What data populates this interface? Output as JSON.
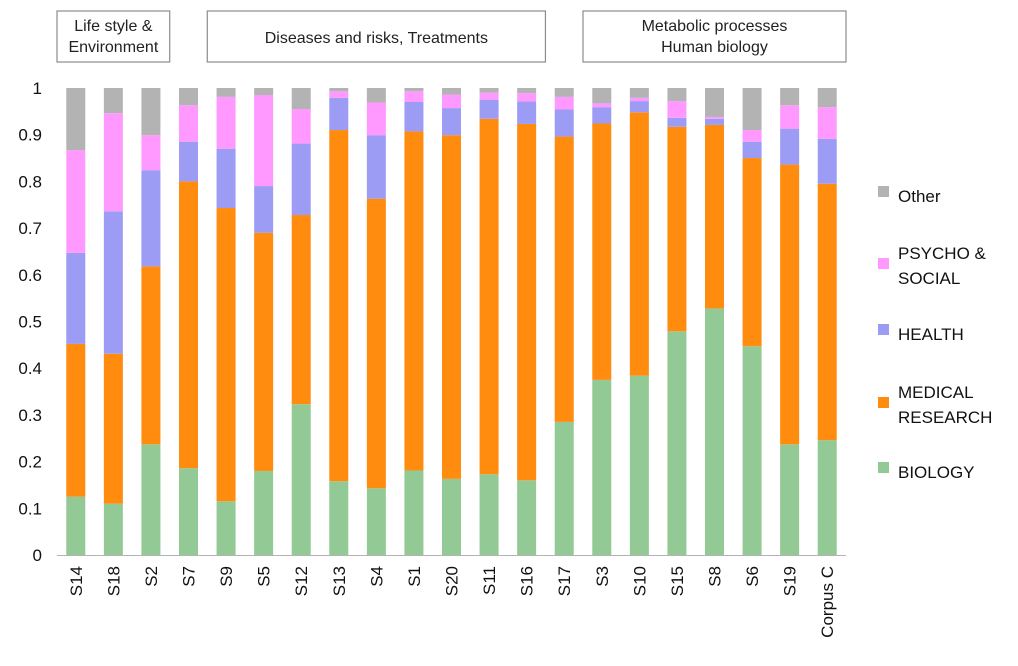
{
  "chart_data": {
    "type": "bar",
    "stacked": true,
    "title": "",
    "xlabel": "",
    "ylabel": "",
    "ylim": [
      0,
      1
    ],
    "yticks": [
      "0",
      "0.1",
      "0.2",
      "0.3",
      "0.4",
      "0.5",
      "0.6",
      "0.7",
      "0.8",
      "0.9",
      "1"
    ],
    "grid": false,
    "legend_position": "right",
    "categories": [
      "S14",
      "S18",
      "S2",
      "S7",
      "S9",
      "S5",
      "S12",
      "S13",
      "S4",
      "S1",
      "S20",
      "S11",
      "S16",
      "S17",
      "S3",
      "S10",
      "S15",
      "S8",
      "S6",
      "S19",
      "Corpus C"
    ],
    "groups": [
      {
        "lines": [
          "Life style &",
          "Environment"
        ],
        "first": 0,
        "last": 2
      },
      {
        "lines": [
          "Diseases and risks, Treatments"
        ],
        "first": 4,
        "last": 12
      },
      {
        "lines": [
          "Metabolic processes",
          "Human biology"
        ],
        "first": 14,
        "last": 20
      }
    ],
    "series": [
      {
        "name": "BIOLOGY",
        "color": "#93c994",
        "values": [
          0.125,
          0.11,
          0.237,
          0.186,
          0.115,
          0.18,
          0.323,
          0.158,
          0.143,
          0.181,
          0.163,
          0.173,
          0.16,
          0.285,
          0.375,
          0.384,
          0.479,
          0.528,
          0.447,
          0.237,
          0.246
        ]
      },
      {
        "name": "MEDICAL RESEARCH",
        "color": "#ff8c0f",
        "values": [
          0.327,
          0.321,
          0.381,
          0.614,
          0.628,
          0.51,
          0.405,
          0.752,
          0.62,
          0.726,
          0.736,
          0.761,
          0.763,
          0.611,
          0.549,
          0.564,
          0.438,
          0.393,
          0.403,
          0.599,
          0.549
        ]
      },
      {
        "name": "HEALTH",
        "color": "#9c9cf5",
        "values": [
          0.195,
          0.305,
          0.206,
          0.085,
          0.127,
          0.1,
          0.153,
          0.069,
          0.136,
          0.063,
          0.058,
          0.041,
          0.048,
          0.058,
          0.035,
          0.024,
          0.019,
          0.013,
          0.035,
          0.077,
          0.096
        ]
      },
      {
        "name": "PSYCHO & SOCIAL",
        "color": "#ff99ff",
        "values": [
          0.22,
          0.21,
          0.075,
          0.078,
          0.111,
          0.195,
          0.074,
          0.014,
          0.07,
          0.023,
          0.029,
          0.015,
          0.018,
          0.027,
          0.008,
          0.007,
          0.036,
          0.004,
          0.025,
          0.05,
          0.068
        ]
      },
      {
        "name": "Other",
        "color": "#b3b3b3",
        "values": [
          0.133,
          0.054,
          0.101,
          0.037,
          0.019,
          0.015,
          0.045,
          0.007,
          0.031,
          0.007,
          0.014,
          0.01,
          0.011,
          0.019,
          0.033,
          0.021,
          0.028,
          0.062,
          0.09,
          0.037,
          0.041
        ]
      }
    ],
    "legend": [
      {
        "lines": [
          "Other"
        ],
        "series": 4
      },
      {
        "lines": [
          "PSYCHO &",
          "SOCIAL"
        ],
        "series": 3
      },
      {
        "lines": [
          "HEALTH"
        ],
        "series": 2
      },
      {
        "lines": [
          "MEDICAL",
          "RESEARCH"
        ],
        "series": 1
      },
      {
        "lines": [
          "BIOLOGY"
        ],
        "series": 0
      }
    ]
  }
}
